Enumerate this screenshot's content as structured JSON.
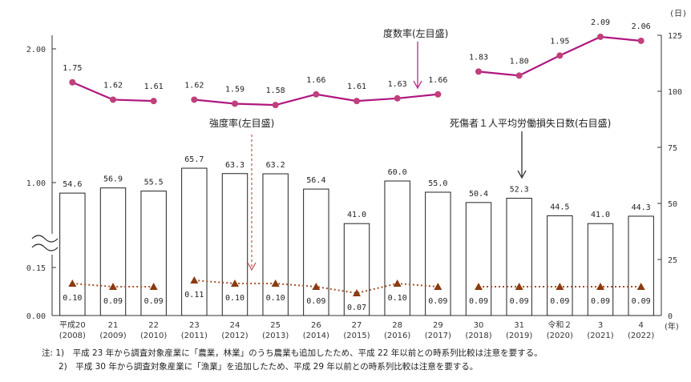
{
  "chart_data": {
    "type": "bar+line",
    "categories": [
      [
        "平成20",
        "(2008)"
      ],
      [
        "21",
        "(2009)"
      ],
      [
        "22",
        "(2010)"
      ],
      [
        "23",
        "(2011)"
      ],
      [
        "24",
        "(2012)"
      ],
      [
        "25",
        "(2013)"
      ],
      [
        "26",
        "(2014)"
      ],
      [
        "27",
        "(2015)"
      ],
      [
        "28",
        "(2016)"
      ],
      [
        "29",
        "(2017)"
      ],
      [
        "30",
        "(2018)"
      ],
      [
        "31",
        "(2019)"
      ],
      [
        "令和２",
        "(2020)"
      ],
      [
        "3",
        "(2021)"
      ],
      [
        "4",
        "(2022)"
      ]
    ],
    "x_unit": "(年)",
    "right_unit": "(日)",
    "left_ticks": [
      "2.00",
      "1.00",
      "0.15",
      "0.00"
    ],
    "right_ticks": [
      "125",
      "100",
      "75",
      "50",
      "25",
      "0"
    ],
    "right_ylim": [
      0,
      125
    ],
    "series": [
      {
        "name": "死傷者１人平均労働損失日数(右目盛)",
        "kind": "bar",
        "axis": "right",
        "values": [
          54.6,
          56.9,
          55.5,
          65.7,
          63.3,
          63.2,
          56.4,
          41.0,
          60.0,
          55.0,
          50.4,
          52.3,
          44.5,
          41.0,
          44.3
        ],
        "labels": [
          "54.6",
          "56.9",
          "55.5",
          "65.7",
          "63.3",
          "63.2",
          "56.4",
          "41.0",
          "60.0",
          "55.0",
          "50.4",
          "52.3",
          "44.5",
          "41.0",
          "44.3"
        ]
      },
      {
        "name": "度数率(左目盛)",
        "kind": "line",
        "axis": "left-upper",
        "values": [
          1.75,
          1.62,
          1.61,
          1.62,
          1.59,
          1.58,
          1.66,
          1.61,
          1.63,
          1.66,
          1.83,
          1.8,
          1.95,
          2.09,
          2.06
        ],
        "labels": [
          "1.75",
          "1.62",
          "1.61",
          "1.62",
          "1.59",
          "1.58",
          "1.66",
          "1.61",
          "1.63",
          "1.66",
          "1.83",
          "1.80",
          "1.95",
          "2.09",
          "2.06"
        ],
        "color": "#b0177f",
        "breaks_after": [
          2,
          9
        ]
      },
      {
        "name": "強度率(左目盛)",
        "kind": "line",
        "axis": "left-lower",
        "values": [
          0.1,
          0.09,
          0.09,
          0.11,
          0.1,
          0.1,
          0.09,
          0.07,
          0.1,
          0.09,
          0.09,
          0.09,
          0.09,
          0.09,
          0.09
        ],
        "labels": [
          "0.10",
          "0.09",
          "0.09",
          "0.11",
          "0.10",
          "0.10",
          "0.09",
          "0.07",
          "0.10",
          "0.09",
          "0.09",
          "0.09",
          "0.09",
          "0.09",
          "0.09"
        ],
        "color": "#8b3a0e",
        "breaks_after": [
          2,
          9
        ]
      }
    ]
  },
  "notes": [
    "注: 1)　平成 23 年から調査対象産業に「農業，林業」のうち農業も追加したため、平成 22 年以前との時系列比較は注意を要する。",
    "　　2)　平成 30 年から調査対象産業に「漁業」を追加したため、平成 29 年以前との時系列比較は注意を要する。"
  ]
}
